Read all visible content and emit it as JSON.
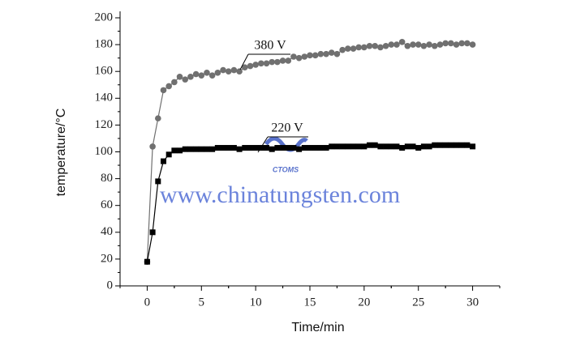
{
  "chart_data": {
    "type": "line",
    "xlabel": "Time/min",
    "ylabel": "temperature/°C",
    "x": [
      0,
      0.5,
      1,
      1.5,
      2,
      2.5,
      3,
      3.5,
      4,
      4.5,
      5,
      5.5,
      6,
      6.5,
      7,
      7.5,
      8,
      8.5,
      9,
      9.5,
      10,
      10.5,
      11,
      11.5,
      12,
      12.5,
      13,
      13.5,
      14,
      14.5,
      15,
      15.5,
      16,
      16.5,
      17,
      17.5,
      18,
      18.5,
      19,
      19.5,
      20,
      20.5,
      21,
      21.5,
      22,
      22.5,
      23,
      23.5,
      24,
      24.5,
      25,
      25.5,
      26,
      26.5,
      27,
      27.5,
      28,
      28.5,
      29,
      29.5,
      30
    ],
    "series": [
      {
        "name": "380 V",
        "color": "#707070",
        "marker": "circle",
        "values": [
          18,
          104,
          125,
          146,
          149,
          152,
          156,
          154,
          156,
          158,
          157,
          159,
          157,
          159,
          161,
          160,
          161,
          160,
          163,
          164,
          165,
          166,
          166,
          167,
          167,
          168,
          168,
          171,
          170,
          171,
          172,
          172,
          173,
          173,
          174,
          173,
          176,
          177,
          177,
          178,
          178,
          179,
          179,
          178,
          179,
          180,
          180,
          182,
          179,
          180,
          180,
          179,
          180,
          179,
          180,
          181,
          181,
          180,
          181,
          181,
          180
        ]
      },
      {
        "name": "220 V",
        "color": "#000000",
        "marker": "square",
        "values": [
          18,
          40,
          78,
          93,
          98,
          101,
          101,
          102,
          102,
          102,
          102,
          102,
          102,
          103,
          103,
          103,
          103,
          102,
          103,
          103,
          103,
          103,
          103,
          102,
          103,
          103,
          103,
          103,
          102,
          103,
          103,
          103,
          103,
          103,
          104,
          104,
          104,
          104,
          104,
          104,
          104,
          105,
          105,
          104,
          104,
          104,
          104,
          103,
          104,
          104,
          103,
          104,
          104,
          105,
          105,
          105,
          105,
          105,
          105,
          105,
          104
        ]
      }
    ],
    "xlim": [
      -2.5,
      32.5
    ],
    "xticks": [
      0,
      5,
      10,
      15,
      20,
      25,
      30
    ],
    "ylim": [
      0,
      200
    ],
    "yticks": [
      0,
      20,
      40,
      60,
      80,
      100,
      120,
      140,
      160,
      180,
      200
    ],
    "watermark": "www.chinatungsten.com",
    "watermark_logo": "CTOMS"
  }
}
